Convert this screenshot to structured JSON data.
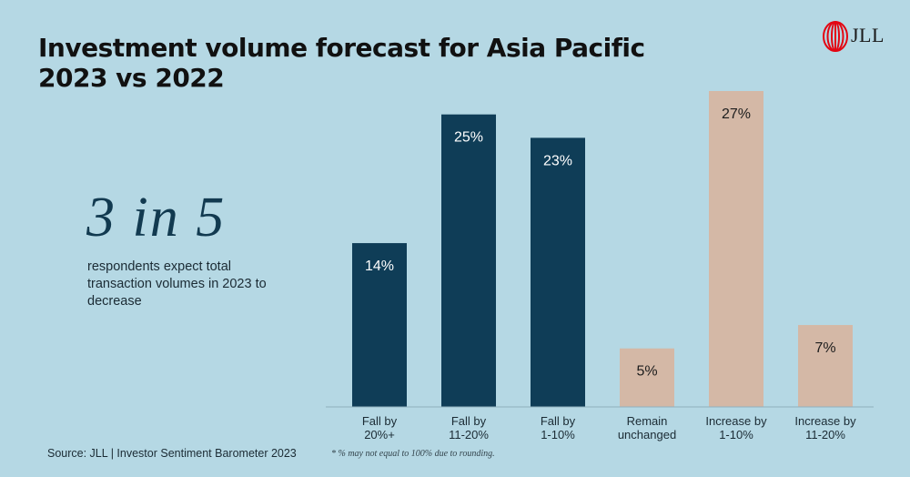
{
  "header": {
    "title_line1": "Investment volume forecast for Asia Pacific",
    "title_line2": "2023 vs 2022",
    "logo_text": "JLL"
  },
  "callout": {
    "stat": "3 in 5",
    "description": "respondents expect total transaction volumes in 2023 to decrease"
  },
  "footer": {
    "source": "Source: JLL | Investor Sentiment Barometer 2023",
    "footnote": "* % may not equal to 100% due to rounding."
  },
  "colors": {
    "background": "#b5d8e4",
    "decrease": "#0f3d57",
    "increase": "#d4b8a6",
    "logo_red": "#e30613"
  },
  "chart_data": {
    "type": "bar",
    "categories": [
      [
        "Fall by",
        "20%+"
      ],
      [
        "Fall by",
        "11-20%"
      ],
      [
        "Fall by",
        "1-10%"
      ],
      [
        "Remain",
        "unchanged"
      ],
      [
        "Increase by",
        "1-10%"
      ],
      [
        "Increase by",
        "11-20%"
      ]
    ],
    "values": [
      14,
      25,
      23,
      5,
      27,
      7
    ],
    "value_labels": [
      "14%",
      "25%",
      "23%",
      "5%",
      "27%",
      "7%"
    ],
    "groups": [
      "decrease",
      "decrease",
      "decrease",
      "unchanged",
      "increase",
      "increase"
    ],
    "ylim": [
      0,
      27
    ],
    "grid": false,
    "title": "",
    "xlabel": "",
    "ylabel": ""
  }
}
